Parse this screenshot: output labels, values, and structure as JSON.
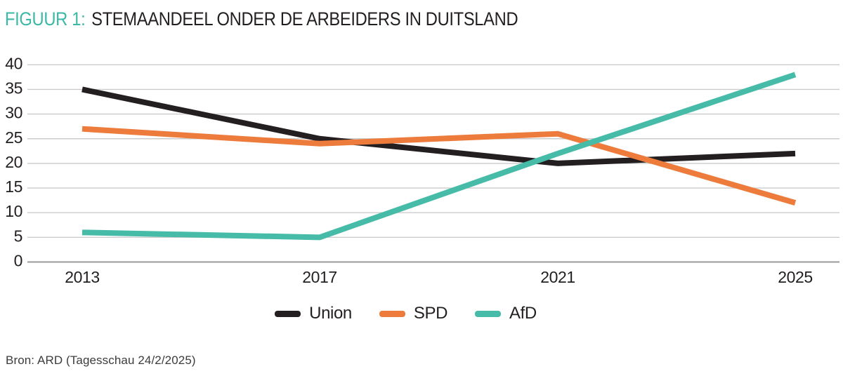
{
  "title": {
    "prefix": "FIGUUR 1:",
    "main": "STEMAANDEEL ONDER DE ARBEIDERS IN DUITSLAND"
  },
  "source": "Bron: ARD (Tagesschau 24/2/2025)",
  "colors": {
    "accent_teal": "#45BBA8",
    "accent_orange": "#ED7B3B",
    "accent_black": "#231F20",
    "gridline": "#CBCBCB",
    "axis_zero_line": "#9A9A9A",
    "title_prefix": "#3BB8A6",
    "source_text": "#3c3c3c"
  },
  "chart_data": {
    "type": "line",
    "title": "Stemaandeel onder de arbeiders in Duitsland",
    "x": [
      2013,
      2017,
      2021,
      2025
    ],
    "series": [
      {
        "name": "Union",
        "color": "#231F20",
        "values": [
          35,
          25,
          20,
          22
        ]
      },
      {
        "name": "SPD",
        "color": "#ED7B3B",
        "values": [
          27,
          24,
          26,
          12
        ]
      },
      {
        "name": "AfD",
        "color": "#45BBA8",
        "values": [
          6,
          5,
          22,
          38
        ]
      }
    ],
    "ylim": [
      0,
      40
    ],
    "ytick_step": 5,
    "grid": true,
    "legend_position": "bottom",
    "line_width": 8
  }
}
